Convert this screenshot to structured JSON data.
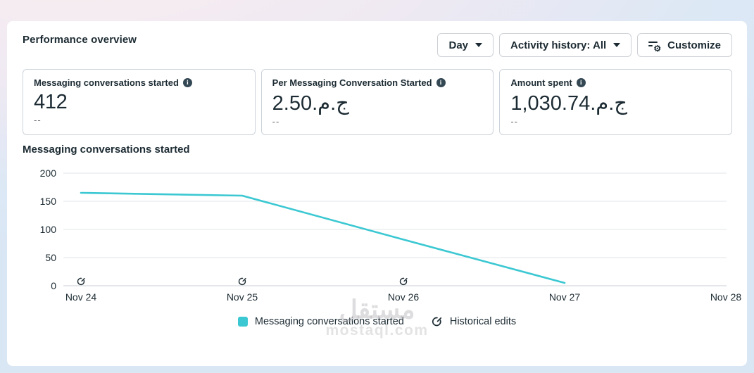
{
  "header": {
    "title": "Performance overview",
    "controls": {
      "time_breakdown": "Day",
      "activity_history": "Activity history: All",
      "customize": "Customize"
    }
  },
  "metrics": [
    {
      "label": "Messaging conversations started",
      "value": "412",
      "delta": "--"
    },
    {
      "label": "Per Messaging Conversation Started",
      "value": "2.50.ج.م",
      "delta": "--"
    },
    {
      "label": "Amount spent",
      "value": "1,030.74.ج.م",
      "delta": "--"
    }
  ],
  "chart_data": {
    "type": "line",
    "title": "Messaging conversations started",
    "x": [
      "Nov 24",
      "Nov 25",
      "Nov 26",
      "Nov 27",
      "Nov 28"
    ],
    "series": [
      {
        "name": "Messaging conversations started",
        "values": [
          165,
          160,
          82,
          5,
          null
        ],
        "color": "#3bc8d2"
      }
    ],
    "ylim": [
      0,
      200
    ],
    "yticks": [
      0,
      50,
      100,
      150,
      200
    ],
    "grid": "horizontal",
    "historical_edits_at": [
      "Nov 24",
      "Nov 25",
      "Nov 26"
    ],
    "legend_position": "bottom-center",
    "legend": [
      {
        "label": "Messaging conversations started",
        "color": "#3bc8d2"
      },
      {
        "label": "Historical edits",
        "icon": "historical-edits-icon"
      }
    ]
  },
  "colors": {
    "accent_teal": "#3bc8d2",
    "text_primary": "#1c2b33",
    "gridline": "#e8eaed",
    "axis_line": "#d3d7dc"
  },
  "watermark": {
    "arabic": "مستقل",
    "domain": "mostaql.com"
  }
}
